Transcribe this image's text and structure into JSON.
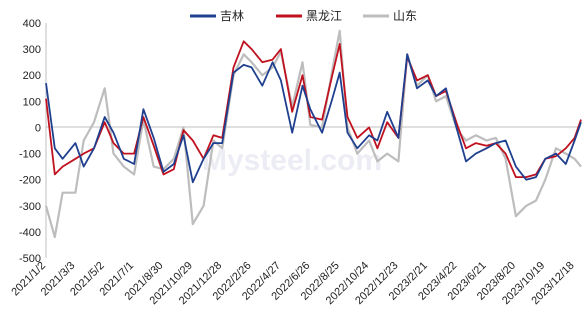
{
  "chart_data": {
    "type": "line",
    "title": "",
    "xlabel": "",
    "ylabel": "",
    "ylim": [
      -500,
      400
    ],
    "yticks": [
      400,
      300,
      200,
      100,
      0,
      -100,
      -200,
      -300,
      -400,
      -500
    ],
    "x_tick_labels": [
      "2021/1/2",
      "2021/3/3",
      "2021/5/2",
      "2021/7/1",
      "2021/8/30",
      "2021/10/29",
      "2021/12/28",
      "2022/2/26",
      "2022/4/27",
      "2022/6/26",
      "2022/8/25",
      "2022/10/24",
      "2022/12/23",
      "2023/2/21",
      "2023/4/22",
      "2023/6/21",
      "2023/8/20",
      "2023/10/19",
      "2023/12/18"
    ],
    "legend_position": "top-center",
    "grid": false,
    "watermark": "Mysteel.com",
    "series": [
      {
        "name": "吉林",
        "color": "#1f3f8f",
        "x": [
          "2021/1/2",
          "2021/1/20",
          "2021/2/5",
          "2021/3/3",
          "2021/3/20",
          "2021/4/10",
          "2021/5/2",
          "2021/5/20",
          "2021/6/10",
          "2021/7/1",
          "2021/7/20",
          "2021/8/10",
          "2021/8/30",
          "2021/9/20",
          "2021/10/10",
          "2021/10/29",
          "2021/11/20",
          "2021/12/10",
          "2021/12/28",
          "2022/1/20",
          "2022/2/10",
          "2022/2/26",
          "2022/3/20",
          "2022/4/10",
          "2022/4/27",
          "2022/5/20",
          "2022/6/10",
          "2022/6/26",
          "2022/7/20",
          "2022/8/10",
          "2022/8/25",
          "2022/9/10",
          "2022/9/30",
          "2022/10/24",
          "2022/11/10",
          "2022/11/30",
          "2022/12/23",
          "2023/1/10",
          "2023/1/30",
          "2023/2/21",
          "2023/3/10",
          "2023/3/30",
          "2023/4/22",
          "2023/5/10",
          "2023/5/30",
          "2023/6/21",
          "2023/7/10",
          "2023/7/30",
          "2023/8/20",
          "2023/9/10",
          "2023/9/30",
          "2023/10/19",
          "2023/11/10",
          "2023/11/30",
          "2023/12/18",
          "2023/12/31"
        ],
        "values": [
          170,
          -80,
          -120,
          -60,
          -150,
          -80,
          40,
          -20,
          -120,
          -140,
          70,
          -40,
          -170,
          -140,
          -30,
          -210,
          -120,
          -60,
          -60,
          210,
          240,
          230,
          160,
          250,
          180,
          -20,
          160,
          70,
          -20,
          110,
          210,
          -20,
          -80,
          -30,
          -50,
          60,
          -40,
          280,
          150,
          180,
          120,
          150,
          -10,
          -130,
          -100,
          -80,
          -60,
          -50,
          -150,
          -200,
          -190,
          -120,
          -100,
          -140,
          -50,
          20
        ]
      },
      {
        "name": "黑龙江",
        "color": "#c0111f",
        "x": [
          "2021/1/2",
          "2021/1/20",
          "2021/2/5",
          "2021/3/3",
          "2021/3/20",
          "2021/4/10",
          "2021/5/2",
          "2021/5/20",
          "2021/6/10",
          "2021/7/1",
          "2021/7/20",
          "2021/8/10",
          "2021/8/30",
          "2021/9/20",
          "2021/10/10",
          "2021/10/29",
          "2021/11/20",
          "2021/12/10",
          "2021/12/28",
          "2022/1/20",
          "2022/2/10",
          "2022/2/26",
          "2022/3/20",
          "2022/4/10",
          "2022/4/27",
          "2022/5/20",
          "2022/6/10",
          "2022/6/26",
          "2022/7/20",
          "2022/8/10",
          "2022/8/25",
          "2022/9/10",
          "2022/9/30",
          "2022/10/24",
          "2022/11/10",
          "2022/11/30",
          "2022/12/23",
          "2023/1/10",
          "2023/1/30",
          "2023/2/21",
          "2023/3/10",
          "2023/3/30",
          "2023/4/22",
          "2023/5/10",
          "2023/5/30",
          "2023/6/21",
          "2023/7/10",
          "2023/7/30",
          "2023/8/20",
          "2023/9/10",
          "2023/9/30",
          "2023/10/19",
          "2023/11/10",
          "2023/11/30",
          "2023/12/18",
          "2023/12/31"
        ],
        "values": [
          110,
          -180,
          -150,
          -120,
          -100,
          -80,
          20,
          -60,
          -100,
          -100,
          40,
          -70,
          -180,
          -160,
          -10,
          -50,
          -120,
          -30,
          -40,
          230,
          330,
          300,
          250,
          260,
          300,
          60,
          200,
          40,
          30,
          200,
          320,
          40,
          -40,
          0,
          -80,
          20,
          -40,
          270,
          180,
          200,
          120,
          140,
          10,
          -80,
          -60,
          -70,
          -60,
          -100,
          -190,
          -190,
          -180,
          -120,
          -110,
          -80,
          -40,
          30
        ]
      },
      {
        "name": "山东",
        "color": "#bdbdbd",
        "x": [
          "2021/1/2",
          "2021/1/20",
          "2021/2/5",
          "2021/3/3",
          "2021/3/20",
          "2021/4/10",
          "2021/5/2",
          "2021/5/20",
          "2021/6/10",
          "2021/7/1",
          "2021/7/20",
          "2021/8/10",
          "2021/8/30",
          "2021/9/20",
          "2021/10/10",
          "2021/10/29",
          "2021/11/20",
          "2021/12/10",
          "2021/12/28",
          "2022/1/20",
          "2022/2/10",
          "2022/2/26",
          "2022/3/20",
          "2022/4/10",
          "2022/4/27",
          "2022/5/20",
          "2022/6/10",
          "2022/6/26",
          "2022/7/20",
          "2022/8/10",
          "2022/8/25",
          "2022/9/10",
          "2022/9/30",
          "2022/10/24",
          "2022/11/10",
          "2022/11/30",
          "2022/12/23",
          "2023/1/10",
          "2023/1/30",
          "2023/2/21",
          "2023/3/10",
          "2023/3/30",
          "2023/4/22",
          "2023/5/10",
          "2023/5/30",
          "2023/6/21",
          "2023/7/10",
          "2023/7/30",
          "2023/8/20",
          "2023/9/10",
          "2023/9/30",
          "2023/10/19",
          "2023/11/10",
          "2023/11/30",
          "2023/12/18",
          "2023/12/31"
        ],
        "values": [
          -300,
          -420,
          -250,
          -250,
          -50,
          20,
          150,
          -100,
          -150,
          -180,
          30,
          -150,
          -160,
          -120,
          0,
          -370,
          -300,
          -50,
          -80,
          200,
          280,
          250,
          200,
          230,
          290,
          80,
          250,
          10,
          0,
          220,
          370,
          0,
          -100,
          -50,
          -130,
          -100,
          -130,
          280,
          160,
          200,
          100,
          120,
          -10,
          -50,
          -30,
          -50,
          -40,
          -120,
          -340,
          -300,
          -280,
          -200,
          -80,
          -100,
          -120,
          -150
        ]
      }
    ]
  }
}
